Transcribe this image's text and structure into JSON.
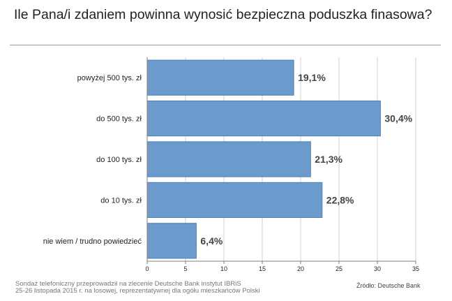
{
  "title": "Ile Pana/i zdaniem powinna wynosić bezpieczna poduszka finasowa?",
  "chart_data": {
    "type": "bar",
    "orientation": "horizontal",
    "categories": [
      "powyżej 500 tys. zł",
      "do 500 tys. zł",
      "do 100 tys. zł",
      "do 10 tys. zł",
      "nie wiem / trudno powiedzieć"
    ],
    "values": [
      19.1,
      30.4,
      21.3,
      22.8,
      6.4
    ],
    "value_labels": [
      "19,1%",
      "30,4%",
      "21,3%",
      "22,8%",
      "6,4%"
    ],
    "xlim": [
      0,
      35
    ],
    "xticks": [
      0,
      5,
      10,
      15,
      20,
      25,
      30,
      35
    ],
    "bar_color": "#6b9bcd",
    "bar_edge_color": "#4f80b8",
    "grid": true
  },
  "footer": {
    "line1": "Sondaż telefoniczny przeprowadził na zlecenie Deutsche Bank instytut IBRiS",
    "line2": "25-26 listopada 2015 r. na losowej, reprezentatywnej dla  ogółu mieszkańców Polski"
  },
  "source": "Źródło: Deutsche Bank"
}
